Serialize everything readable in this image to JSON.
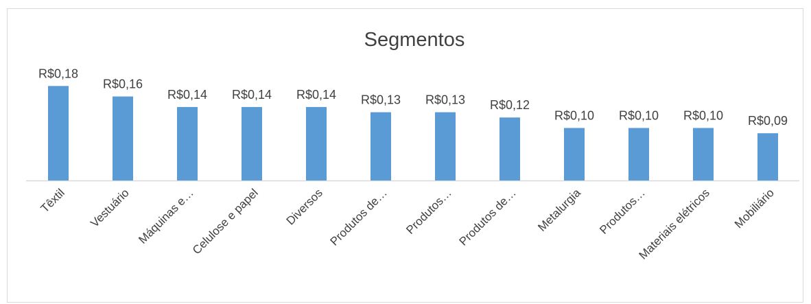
{
  "chart_data": {
    "type": "bar",
    "title": "Segmentos",
    "categories": [
      "Têxtil",
      "Vestuário",
      "Máquinas e…",
      "Celulose e papel",
      "Diversos",
      "Produtos de…",
      "Produtos…",
      "Produtos de…",
      "Metalurgia",
      "Produtos…",
      "Materiais elétricos",
      "Mobiliário"
    ],
    "values": [
      0.18,
      0.16,
      0.14,
      0.14,
      0.14,
      0.13,
      0.13,
      0.12,
      0.1,
      0.1,
      0.1,
      0.09
    ],
    "value_labels": [
      "R$0,18",
      "R$0,16",
      "R$0,14",
      "R$0,14",
      "R$0,14",
      "R$0,13",
      "R$0,13",
      "R$0,12",
      "R$0,10",
      "R$0,10",
      "R$0,10",
      "R$0,09"
    ],
    "color": "#5b9bd5",
    "ylim": [
      0,
      0.2
    ]
  }
}
